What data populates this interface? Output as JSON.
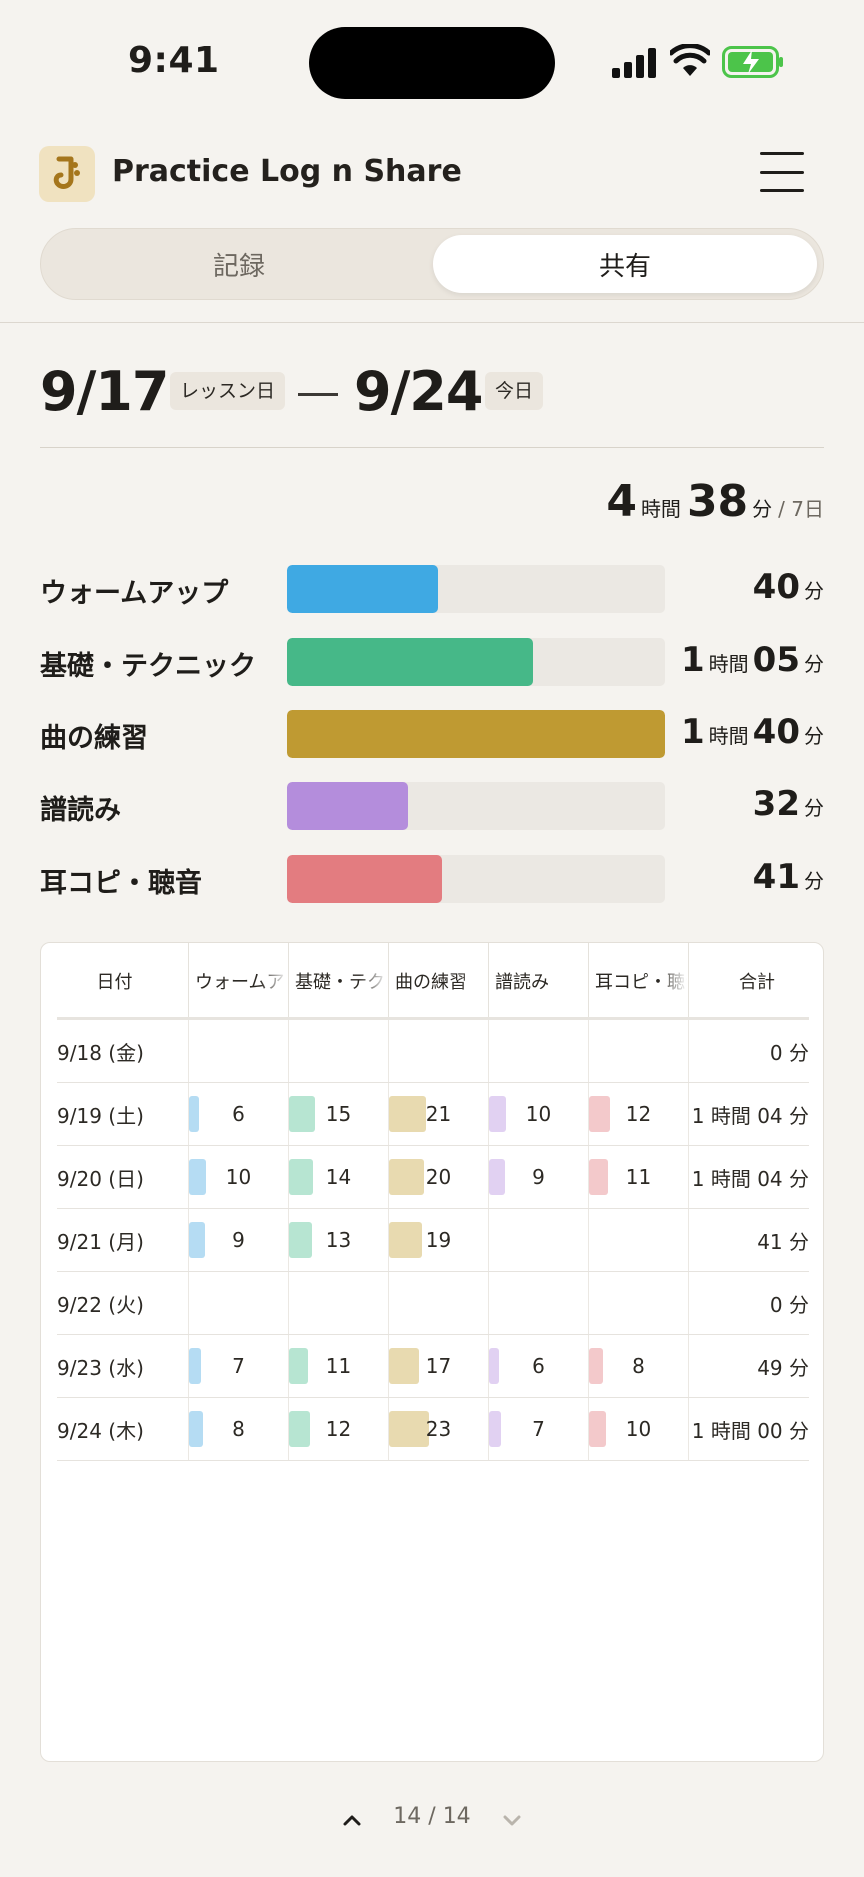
{
  "status": {
    "time": "9:41"
  },
  "app": {
    "title": "Practice Log n Share"
  },
  "tabs": {
    "record": "記録",
    "share": "共有"
  },
  "range": {
    "start": "9/17",
    "start_badge": "レッスン日",
    "end": "9/24",
    "end_badge": "今日"
  },
  "total": {
    "hours": "4",
    "hours_unit": "時間",
    "minutes": "38",
    "minutes_unit": "分",
    "days": "/ 7日"
  },
  "categories": [
    {
      "label": "ウォームアップ",
      "color": "#3fa9e3",
      "fraction": 0.4,
      "value_parts": [
        [
          "40",
          "分"
        ]
      ]
    },
    {
      "label": "基礎・テクニック",
      "color": "#46b888",
      "fraction": 0.65,
      "value_parts": [
        [
          "1",
          "時間"
        ],
        [
          "05",
          "分"
        ]
      ]
    },
    {
      "label": "曲の練習",
      "color": "#bf9a32",
      "fraction": 1.0,
      "value_parts": [
        [
          "1",
          "時間"
        ],
        [
          "40",
          "分"
        ]
      ]
    },
    {
      "label": "譜読み",
      "color": "#b48ddc",
      "fraction": 0.32,
      "value_parts": [
        [
          "32",
          "分"
        ]
      ]
    },
    {
      "label": "耳コピ・聴音",
      "color": "#e37c80",
      "fraction": 0.41,
      "value_parts": [
        [
          "41",
          "分"
        ]
      ]
    }
  ],
  "table": {
    "headers": [
      "日付",
      "ウォームアップ",
      "基礎・テクニック",
      "曲の練習",
      "譜読み",
      "耳コピ・聴音",
      "合計"
    ],
    "cat_colors": [
      "#b5dcf3",
      "#b7e5d2",
      "#e8dab0",
      "#e1d1f2",
      "#f3c9cb"
    ],
    "cat_max": [
      10,
      15,
      23,
      10,
      12
    ],
    "rows": [
      {
        "date": "9/18 (金)",
        "values": [
          null,
          null,
          null,
          null,
          null
        ],
        "total": "0 分"
      },
      {
        "date": "9/19 (土)",
        "values": [
          6,
          15,
          21,
          10,
          12
        ],
        "total": "1 時間 04 分"
      },
      {
        "date": "9/20 (日)",
        "values": [
          10,
          14,
          20,
          9,
          11
        ],
        "total": "1 時間 04 分"
      },
      {
        "date": "9/21 (月)",
        "values": [
          9,
          13,
          19,
          null,
          null
        ],
        "total": "41 分"
      },
      {
        "date": "9/22 (火)",
        "values": [
          null,
          null,
          null,
          null,
          null
        ],
        "total": "0 分"
      },
      {
        "date": "9/23 (水)",
        "values": [
          7,
          11,
          17,
          6,
          8
        ],
        "total": "49 分"
      },
      {
        "date": "9/24 (木)",
        "values": [
          8,
          12,
          23,
          7,
          10
        ],
        "total": "1 時間 00 分"
      }
    ]
  },
  "pager": {
    "text": "14 / 14"
  }
}
